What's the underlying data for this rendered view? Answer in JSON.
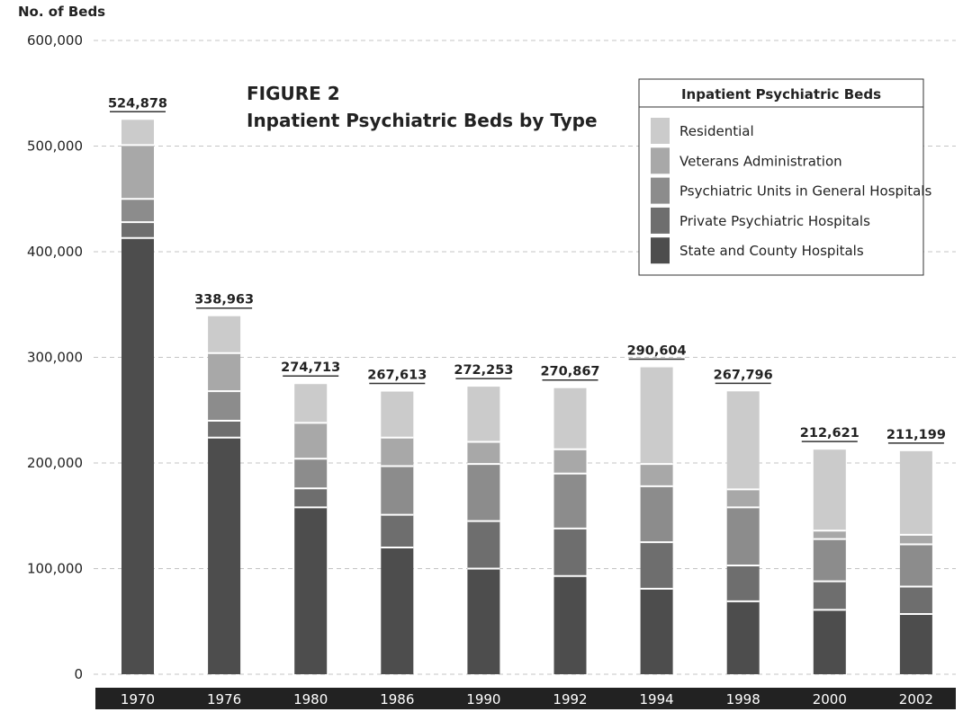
{
  "chart_data": {
    "type": "bar",
    "stacked": true,
    "ylabel": "No. of Beds",
    "title_line1": "FIGURE 2",
    "title_line2": "Inpatient Psychiatric Beds by Type",
    "ylim": [
      0,
      600000
    ],
    "yticks": [
      0,
      100000,
      200000,
      300000,
      400000,
      500000,
      600000
    ],
    "ytick_labels": [
      "0",
      "100,000",
      "200,000",
      "300,000",
      "400,000",
      "500,000",
      "600,000"
    ],
    "grid": "horizontal dashed",
    "categories": [
      "1970",
      "1976",
      "1980",
      "1986",
      "1990",
      "1992",
      "1994",
      "1998",
      "2000",
      "2002"
    ],
    "totals": [
      "524,878",
      "338,963",
      "274,713",
      "267,613",
      "272,253",
      "270,867",
      "290,604",
      "267,796",
      "212,621",
      "211,199"
    ],
    "legend": {
      "title": "Inpatient Psychiatric Beds",
      "placement": "top-right"
    },
    "series": [
      {
        "name": "State and County Hospitals",
        "color": "#4d4d4d",
        "values": [
          413000,
          224000,
          158000,
          120000,
          100000,
          93000,
          81000,
          69000,
          61000,
          57000
        ]
      },
      {
        "name": "Private Psychiatric Hospitals",
        "color": "#6e6e6e",
        "values": [
          15000,
          16000,
          18000,
          31000,
          45000,
          45000,
          44000,
          34000,
          27000,
          26000
        ]
      },
      {
        "name": "Psychiatric Units in General Hospitals",
        "color": "#8c8c8c",
        "values": [
          22000,
          28000,
          28000,
          46000,
          54000,
          52000,
          53000,
          55000,
          40000,
          40000
        ]
      },
      {
        "name": "Veterans Administration",
        "color": "#a8a8a8",
        "values": [
          51000,
          36000,
          34000,
          27000,
          21000,
          23000,
          21000,
          17000,
          8000,
          9000
        ]
      },
      {
        "name": "Residential",
        "color": "#cbcbcb",
        "values": [
          23878,
          34963,
          36713,
          43613,
          52253,
          57867,
          91604,
          92796,
          76621,
          79199
        ]
      }
    ]
  }
}
